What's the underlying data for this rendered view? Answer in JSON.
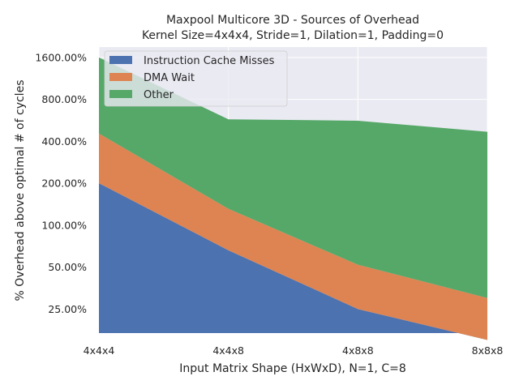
{
  "chart_data": {
    "type": "area",
    "stacked": true,
    "title": "Maxpool Multicore 3D - Sources of Overhead",
    "subtitle": "Kernel Size=4x4x4, Stride=1, Dilation=1, Padding=0",
    "xlabel": "Input Matrix Shape (HxWxD), N=1, C=8",
    "ylabel": "% Overhead above optimal # of cycles",
    "categories": [
      "4x4x4",
      "4x4x8",
      "4x8x8",
      "8x8x8"
    ],
    "yscale": "log2",
    "ylim": [
      16.8,
      1900
    ],
    "yticks": [
      "25.00%",
      "50.00%",
      "100.00%",
      "200.00%",
      "400.00%",
      "800.00%",
      "1600.00%"
    ],
    "ytick_values": [
      25,
      50,
      100,
      200,
      400,
      800,
      1600
    ],
    "grid": true,
    "legend_position": "top-left",
    "series": [
      {
        "name": "Instruction Cache Misses",
        "color": "#4c72b0",
        "values": [
          200,
          66,
          25,
          15
        ]
      },
      {
        "name": "DMA Wait",
        "color": "#dd8452",
        "values": [
          255,
          65,
          27,
          15
        ]
      },
      {
        "name": "Other",
        "color": "#55a868",
        "values": [
          1145,
          444,
          510,
          438
        ]
      }
    ]
  }
}
